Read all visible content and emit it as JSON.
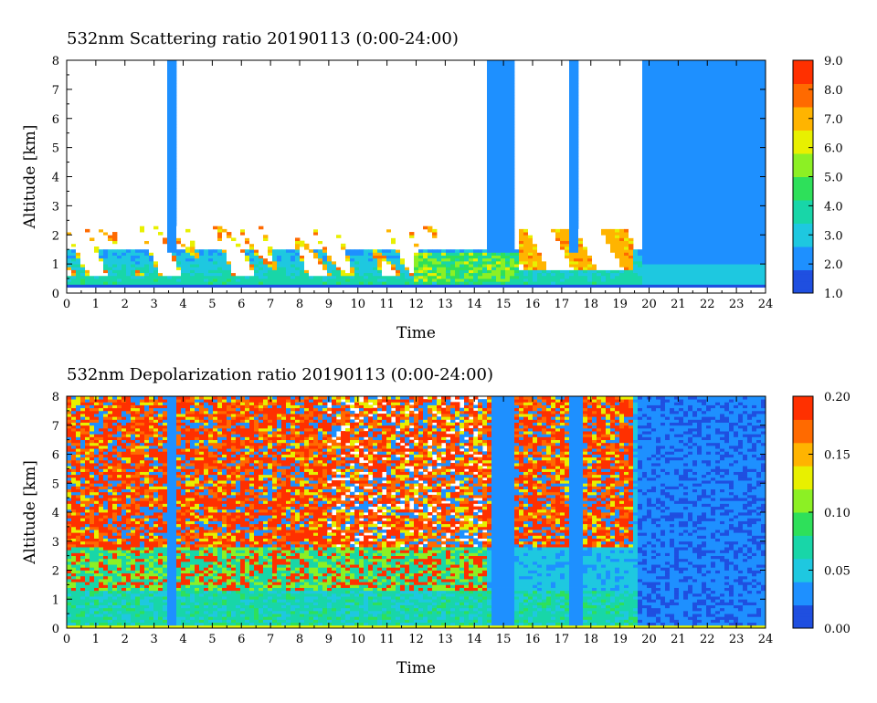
{
  "chart_data": [
    {
      "type": "heatmap",
      "title": "532nm Scattering ratio  20190113 (0:00-24:00)",
      "xlabel": "Time",
      "ylabel": "Altitude [km]",
      "xlim": [
        0,
        24
      ],
      "ylim": [
        0,
        8
      ],
      "x_ticks": [
        "0",
        "1",
        "2",
        "3",
        "4",
        "5",
        "6",
        "7",
        "8",
        "9",
        "10",
        "11",
        "12",
        "13",
        "14",
        "15",
        "16",
        "17",
        "18",
        "19",
        "20",
        "21",
        "22",
        "23",
        "24"
      ],
      "y_ticks": [
        "0",
        "1",
        "2",
        "3",
        "4",
        "5",
        "6",
        "7",
        "8"
      ],
      "colorbar": {
        "range": [
          1.0,
          9.0
        ],
        "labels": [
          "1.0",
          "2.0",
          "3.0",
          "4.0",
          "5.0",
          "6.0",
          "7.0",
          "8.0",
          "9.0"
        ],
        "colors": [
          "#1f4fe0",
          "#1e90ff",
          "#1ec8e0",
          "#18d6a8",
          "#2ee05a",
          "#8cf024",
          "#e8f000",
          "#ffb400",
          "#ff6a00",
          "#ff3000"
        ]
      },
      "features": [
        {
          "desc": "boundary-layer aerosol",
          "x": [
            0,
            24
          ],
          "y": [
            0.3,
            1.5
          ],
          "value": 4.5
        },
        {
          "desc": "cloud/high values",
          "x": [
            0,
            13
          ],
          "y": [
            0.8,
            2.4
          ],
          "value": 9.0
        },
        {
          "desc": "cloud layer",
          "x": [
            15.5,
            19.5
          ],
          "y": [
            0.7,
            2.3
          ],
          "value": 9.0
        },
        {
          "desc": "column",
          "x": [
            3.5,
            3.8
          ],
          "y": [
            1.5,
            8
          ],
          "value": 2.3
        },
        {
          "desc": "column",
          "x": [
            14.5,
            15.3
          ],
          "y": [
            1.5,
            8
          ],
          "value": 2.2
        },
        {
          "desc": "column",
          "x": [
            17.2,
            17.6
          ],
          "y": [
            1.5,
            8
          ],
          "value": 2.2
        },
        {
          "desc": "extended region",
          "x": [
            19.7,
            24
          ],
          "y": [
            0.3,
            8
          ],
          "value": 2.5
        }
      ]
    },
    {
      "type": "heatmap",
      "title": "532nm Depolarization ratio  20190113 (0:00-24:00)",
      "xlabel": "Time",
      "ylabel": "Altitude [km]",
      "xlim": [
        0,
        24
      ],
      "ylim": [
        0,
        8
      ],
      "x_ticks": [
        "0",
        "1",
        "2",
        "3",
        "4",
        "5",
        "6",
        "7",
        "8",
        "9",
        "10",
        "11",
        "12",
        "13",
        "14",
        "15",
        "16",
        "17",
        "18",
        "19",
        "20",
        "21",
        "22",
        "23",
        "24"
      ],
      "y_ticks": [
        "0",
        "1",
        "2",
        "3",
        "4",
        "5",
        "6",
        "7",
        "8"
      ],
      "colorbar": {
        "range": [
          0.0,
          0.2
        ],
        "labels": [
          "0.00",
          "0.05",
          "0.10",
          "0.15",
          "0.20"
        ],
        "colors": [
          "#1f4fe0",
          "#1e90ff",
          "#1ec8e0",
          "#18d6a8",
          "#2ee05a",
          "#8cf024",
          "#e8f000",
          "#ffb400",
          "#ff6a00",
          "#ff3000"
        ]
      },
      "features": [
        {
          "desc": "noisy high depolarization",
          "x": [
            0,
            19.5
          ],
          "y": [
            3,
            8
          ],
          "value": 0.18
        },
        {
          "desc": "mid-level mix",
          "x": [
            0,
            14.5
          ],
          "y": [
            1.5,
            3.5
          ],
          "value": 0.09
        },
        {
          "desc": "near-surface low",
          "x": [
            0,
            24
          ],
          "y": [
            0,
            1.2
          ],
          "value": 0.04
        },
        {
          "desc": "column",
          "x": [
            3.5,
            3.8
          ],
          "y": [
            0,
            8
          ],
          "value": 0.03
        },
        {
          "desc": "column",
          "x": [
            14.6,
            15.4
          ],
          "y": [
            0,
            8
          ],
          "value": 0.025
        },
        {
          "desc": "column",
          "x": [
            17.3,
            17.7
          ],
          "y": [
            0,
            8
          ],
          "value": 0.025
        },
        {
          "desc": "extended low region",
          "x": [
            19.6,
            24
          ],
          "y": [
            0,
            8
          ],
          "value": 0.02
        }
      ]
    }
  ]
}
